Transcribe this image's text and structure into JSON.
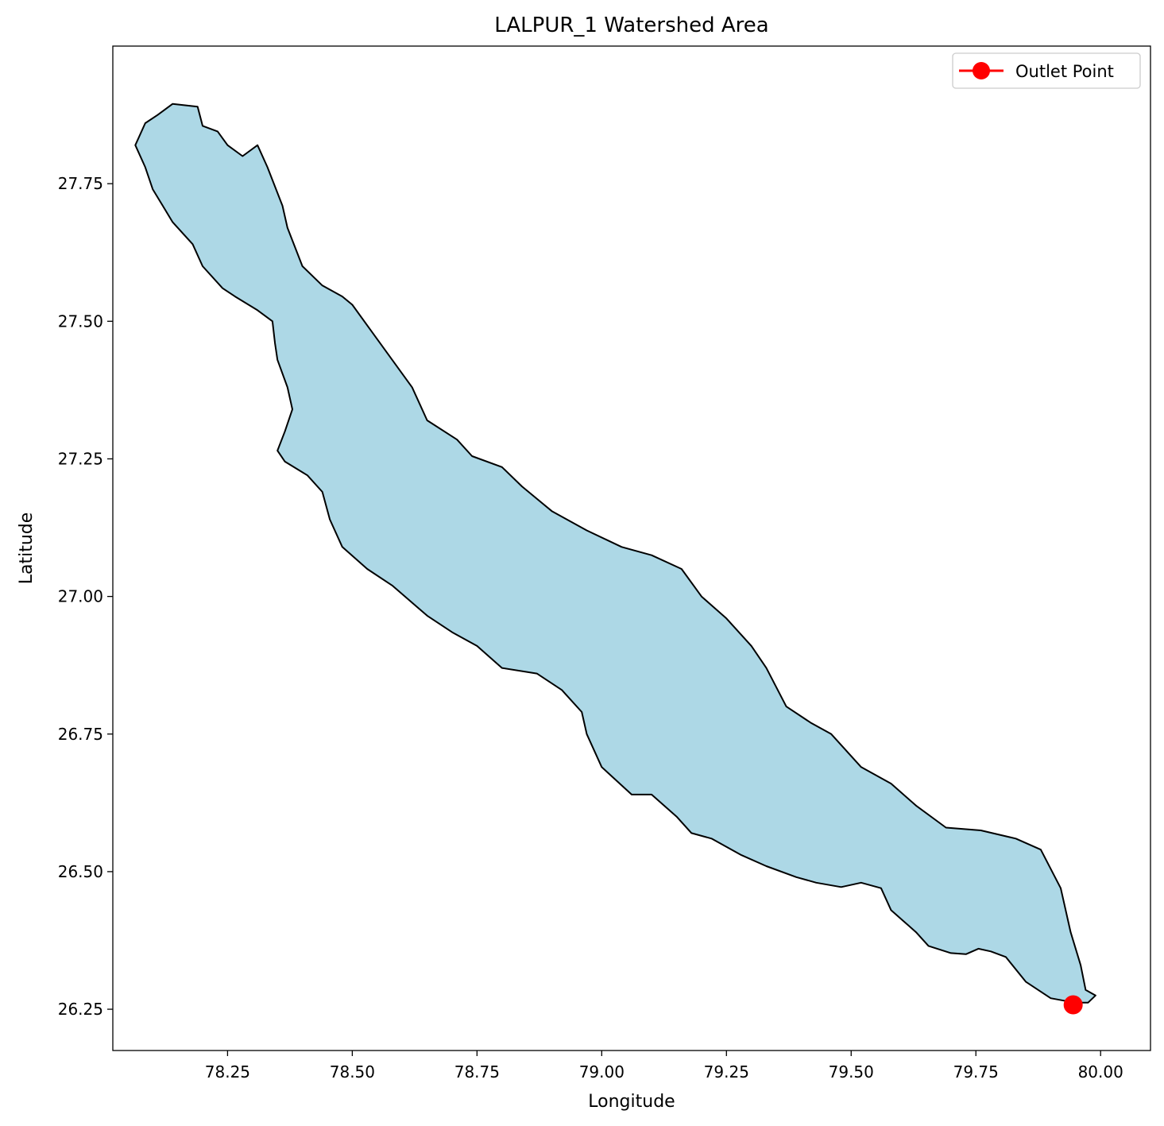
{
  "chart_data": {
    "type": "map",
    "title": "LALPUR_1 Watershed Area",
    "xlabel": "Longitude",
    "ylabel": "Latitude",
    "xlim": [
      78.02,
      80.1
    ],
    "ylim": [
      26.175,
      28.0
    ],
    "x_ticks": [
      78.25,
      78.5,
      78.75,
      79.0,
      79.25,
      79.5,
      79.75,
      80.0
    ],
    "x_tick_labels": [
      "78.25",
      "78.50",
      "78.75",
      "79.00",
      "79.25",
      "79.50",
      "79.75",
      "80.00"
    ],
    "y_ticks": [
      26.25,
      26.5,
      26.75,
      27.0,
      27.25,
      27.5,
      27.75
    ],
    "y_tick_labels": [
      "26.25",
      "26.50",
      "26.75",
      "27.00",
      "27.25",
      "27.50",
      "27.75"
    ],
    "grid": false,
    "legend_position": "top-right",
    "legend": [
      {
        "label": "Outlet Point",
        "color": "#ff0000",
        "marker": "circle"
      }
    ],
    "outlet_point": {
      "lon": 79.945,
      "lat": 26.258
    },
    "watershed": {
      "fill": "#add8e6",
      "edge": "#000000",
      "boundary": [
        [
          78.11,
          27.875
        ],
        [
          78.14,
          27.895
        ],
        [
          78.19,
          27.89
        ],
        [
          78.2,
          27.855
        ],
        [
          78.23,
          27.845
        ],
        [
          78.25,
          27.82
        ],
        [
          78.28,
          27.8
        ],
        [
          78.31,
          27.82
        ],
        [
          78.33,
          27.78
        ],
        [
          78.36,
          27.71
        ],
        [
          78.37,
          27.67
        ],
        [
          78.4,
          27.6
        ],
        [
          78.44,
          27.565
        ],
        [
          78.48,
          27.545
        ],
        [
          78.5,
          27.53
        ],
        [
          78.54,
          27.48
        ],
        [
          78.58,
          27.43
        ],
        [
          78.62,
          27.38
        ],
        [
          78.65,
          27.32
        ],
        [
          78.71,
          27.285
        ],
        [
          78.74,
          27.255
        ],
        [
          78.8,
          27.235
        ],
        [
          78.84,
          27.2
        ],
        [
          78.9,
          27.155
        ],
        [
          78.97,
          27.12
        ],
        [
          79.04,
          27.09
        ],
        [
          79.1,
          27.075
        ],
        [
          79.16,
          27.05
        ],
        [
          79.2,
          27.0
        ],
        [
          79.25,
          26.96
        ],
        [
          79.3,
          26.91
        ],
        [
          79.33,
          26.87
        ],
        [
          79.37,
          26.8
        ],
        [
          79.42,
          26.77
        ],
        [
          79.46,
          26.75
        ],
        [
          79.52,
          26.69
        ],
        [
          79.58,
          26.66
        ],
        [
          79.63,
          26.62
        ],
        [
          79.69,
          26.58
        ],
        [
          79.76,
          26.575
        ],
        [
          79.83,
          26.56
        ],
        [
          79.88,
          26.54
        ],
        [
          79.92,
          26.47
        ],
        [
          79.94,
          26.39
        ],
        [
          79.96,
          26.33
        ],
        [
          79.97,
          26.285
        ],
        [
          79.99,
          26.275
        ],
        [
          79.975,
          26.262
        ],
        [
          79.955,
          26.262
        ],
        [
          79.93,
          26.265
        ],
        [
          79.9,
          26.27
        ],
        [
          79.85,
          26.3
        ],
        [
          79.81,
          26.345
        ],
        [
          79.78,
          26.355
        ],
        [
          79.755,
          26.36
        ],
        [
          79.73,
          26.35
        ],
        [
          79.7,
          26.352
        ],
        [
          79.655,
          26.365
        ],
        [
          79.63,
          26.39
        ],
        [
          79.605,
          26.41
        ],
        [
          79.58,
          26.43
        ],
        [
          79.56,
          26.47
        ],
        [
          79.52,
          26.48
        ],
        [
          79.48,
          26.472
        ],
        [
          79.43,
          26.48
        ],
        [
          79.39,
          26.49
        ],
        [
          79.33,
          26.51
        ],
        [
          79.28,
          26.53
        ],
        [
          79.22,
          26.56
        ],
        [
          79.18,
          26.57
        ],
        [
          79.15,
          26.6
        ],
        [
          79.1,
          26.64
        ],
        [
          79.06,
          26.64
        ],
        [
          79.0,
          26.69
        ],
        [
          78.97,
          26.75
        ],
        [
          78.96,
          26.79
        ],
        [
          78.92,
          26.83
        ],
        [
          78.87,
          26.86
        ],
        [
          78.8,
          26.87
        ],
        [
          78.75,
          26.91
        ],
        [
          78.7,
          26.935
        ],
        [
          78.65,
          26.965
        ],
        [
          78.58,
          27.02
        ],
        [
          78.53,
          27.05
        ],
        [
          78.48,
          27.09
        ],
        [
          78.455,
          27.14
        ],
        [
          78.44,
          27.19
        ],
        [
          78.41,
          27.22
        ],
        [
          78.365,
          27.245
        ],
        [
          78.35,
          27.265
        ],
        [
          78.365,
          27.3
        ],
        [
          78.38,
          27.34
        ],
        [
          78.37,
          27.38
        ],
        [
          78.35,
          27.43
        ],
        [
          78.345,
          27.46
        ],
        [
          78.34,
          27.5
        ],
        [
          78.31,
          27.52
        ],
        [
          78.265,
          27.545
        ],
        [
          78.24,
          27.56
        ],
        [
          78.2,
          27.6
        ],
        [
          78.18,
          27.64
        ],
        [
          78.14,
          27.68
        ],
        [
          78.12,
          27.71
        ],
        [
          78.1,
          27.74
        ],
        [
          78.085,
          27.78
        ],
        [
          78.065,
          27.82
        ],
        [
          78.085,
          27.86
        ]
      ]
    }
  }
}
